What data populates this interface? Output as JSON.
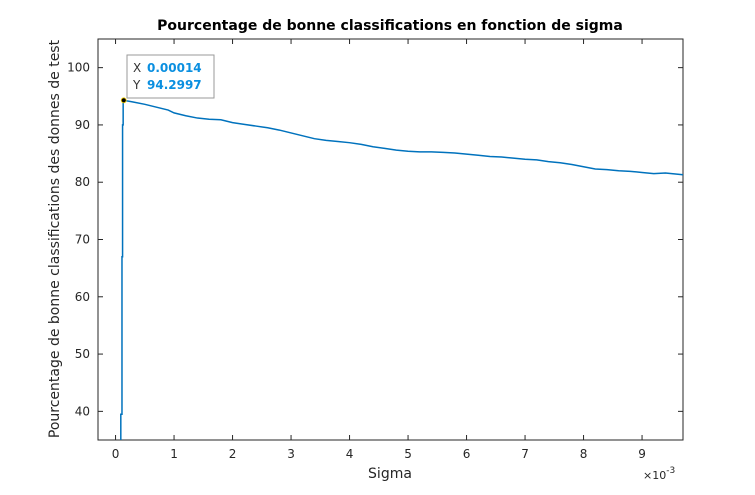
{
  "chart_data": {
    "type": "line",
    "title": "Pourcentage de bonne classifications en fonction de sigma",
    "xlabel": "Sigma",
    "ylabel": "Pourcentage de bonne classifications des donnes de test",
    "x_exponent_label": "×10",
    "x_exponent_power": "-3",
    "xlim": [
      -0.0003,
      0.0097
    ],
    "ylim": [
      35,
      105
    ],
    "x_ticks": [
      0,
      0.001,
      0.002,
      0.003,
      0.004,
      0.005,
      0.006,
      0.007,
      0.008,
      0.009
    ],
    "x_tick_labels": [
      "0",
      "1",
      "2",
      "3",
      "4",
      "5",
      "6",
      "7",
      "8",
      "9"
    ],
    "y_ticks": [
      40,
      50,
      60,
      70,
      80,
      90,
      100
    ],
    "y_tick_labels": [
      "40",
      "50",
      "60",
      "70",
      "80",
      "90",
      "100"
    ],
    "grid": false,
    "line_color": "#0072bd",
    "series": [
      {
        "x": [
          9e-05,
          9e-05,
          0.00011,
          0.00011,
          0.00012,
          0.00012,
          0.00013,
          0.00013,
          0.00014,
          0.0003,
          0.0005,
          0.0007,
          0.0009,
          0.001,
          0.0012,
          0.0014,
          0.0016,
          0.0018,
          0.002,
          0.0022,
          0.0024,
          0.0026,
          0.0028,
          0.003,
          0.0032,
          0.0034,
          0.0036,
          0.0038,
          0.004,
          0.0042,
          0.0044,
          0.0046,
          0.0048,
          0.005,
          0.0052,
          0.0054,
          0.0056,
          0.0058,
          0.006,
          0.0062,
          0.0064,
          0.0066,
          0.0068,
          0.007,
          0.0072,
          0.0074,
          0.0076,
          0.0078,
          0.008,
          0.0082,
          0.0084,
          0.0086,
          0.0088,
          0.009,
          0.0092,
          0.0094,
          0.0097
        ],
        "y": [
          35,
          39.5,
          39.5,
          67,
          67,
          90,
          90,
          94,
          94.2997,
          94.0,
          93.6,
          93.1,
          92.6,
          92.1,
          91.6,
          91.2,
          91.0,
          90.9,
          90.4,
          90.1,
          89.8,
          89.5,
          89.1,
          88.6,
          88.1,
          87.6,
          87.3,
          87.1,
          86.9,
          86.6,
          86.2,
          85.9,
          85.6,
          85.4,
          85.3,
          85.3,
          85.2,
          85.1,
          84.9,
          84.7,
          84.5,
          84.4,
          84.2,
          84.0,
          83.9,
          83.6,
          83.4,
          83.1,
          82.7,
          82.3,
          82.2,
          82.0,
          81.9,
          81.7,
          81.5,
          81.6,
          81.3
        ]
      }
    ],
    "datatip": {
      "x_key": "X",
      "x_value": "0.00014",
      "y_key": "Y",
      "y_value": "94.2997",
      "x": 0.00014,
      "y": 94.2997
    }
  }
}
